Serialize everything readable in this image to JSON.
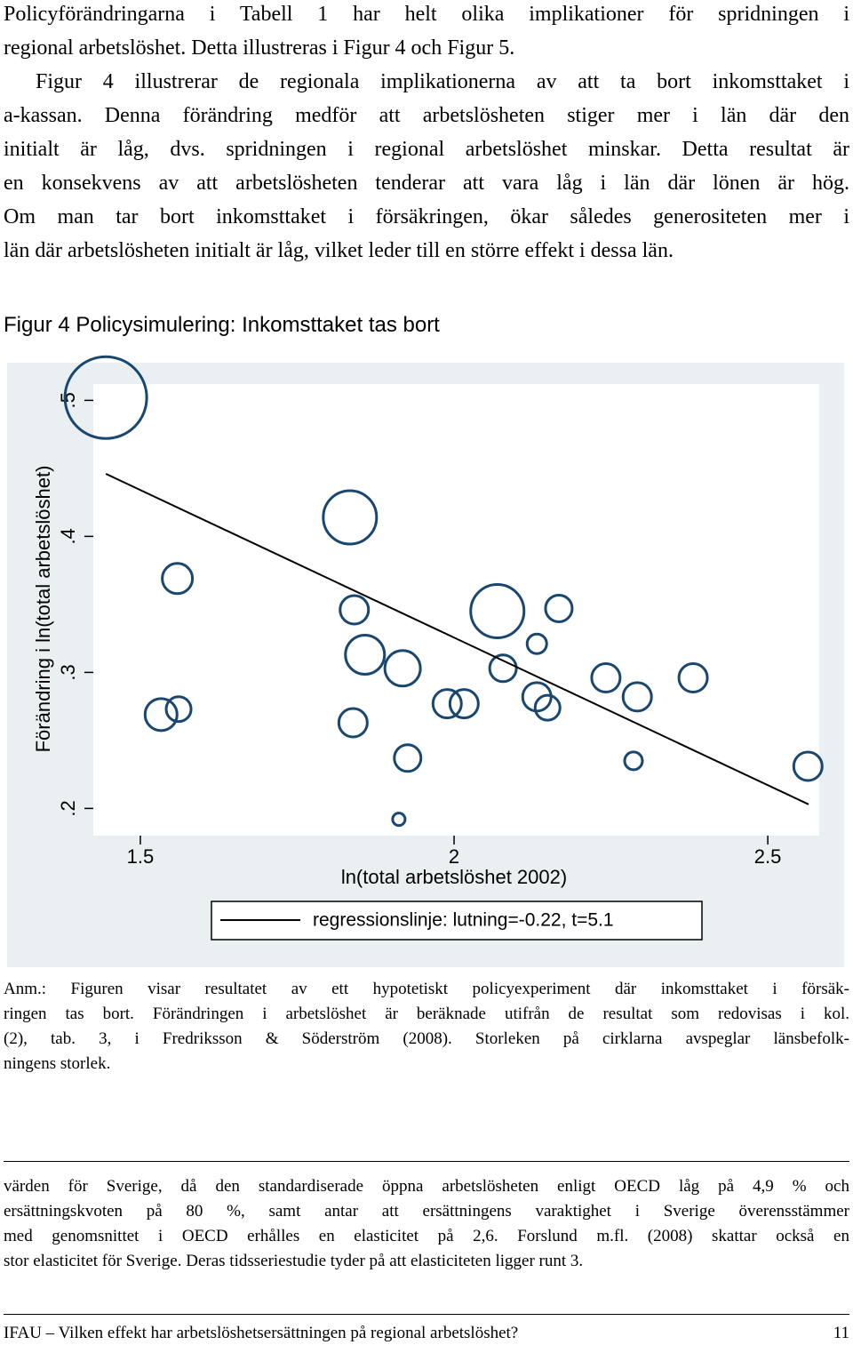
{
  "body": {
    "lines": [
      "Policyförändringarna i Tabell 1 har helt olika implikationer för spridningen i",
      "regional arbetslöshet. Detta illustreras i Figur 4 och Figur 5.",
      "Figur 4 illustrerar de regionala implikationerna av att ta bort inkomsttaket i",
      "a-kassan. Denna förändring medför att arbetslösheten stiger mer i län där den",
      "initialt är låg, dvs. spridningen i regional arbetslöshet minskar. Detta resultat är",
      "en konsekvens av att arbetslösheten tenderar att vara låg i län där lönen är hög.",
      "Om man tar bort inkomsttaket i försäkringen, ökar således generositeten mer i",
      "län där arbetslösheten initialt är låg, vilket leder till en större effekt i dessa län."
    ]
  },
  "figure": {
    "title": "Figur 4 Policysimulering: Inkomsttaket tas bort"
  },
  "chart_data": {
    "type": "scatter",
    "x_label": "ln(total arbetslöshet 2002)",
    "y_label": "Förändring i ln(total arbetslöshet)",
    "x": [
      1.445,
      1.559,
      1.533,
      1.561,
      1.834,
      1.841,
      1.858,
      1.839,
      1.918,
      1.926,
      1.912,
      1.989,
      2.016,
      2.069,
      2.078,
      2.132,
      2.167,
      2.132,
      2.149,
      2.242,
      2.292,
      2.286,
      2.381,
      2.564
    ],
    "values": [
      0.502,
      0.369,
      0.269,
      0.273,
      0.414,
      0.346,
      0.313,
      0.263,
      0.303,
      0.237,
      0.192,
      0.277,
      0.277,
      0.345,
      0.303,
      0.321,
      0.347,
      0.282,
      0.274,
      0.296,
      0.282,
      0.235,
      0.296,
      0.231
    ],
    "sizes": [
      46,
      17,
      18,
      14,
      30,
      16,
      22,
      16,
      20,
      15,
      7,
      16,
      16,
      30,
      15,
      11,
      15,
      16,
      14,
      16,
      16,
      10,
      16,
      16
    ],
    "color": "#1a476f",
    "regression": {
      "name": "regressionslinje: lutning=-0.22, t=5.1",
      "x": [
        1.445,
        2.565
      ],
      "values": [
        0.446,
        0.203
      ],
      "color": "#000000"
    },
    "xlim": [
      1.425,
      2.582
    ],
    "ylim": [
      0.18,
      0.512
    ],
    "xticks": [
      1.5,
      2,
      2.5
    ],
    "yticks": [
      {
        "value": 0.2,
        "label": ".2"
      },
      {
        "value": 0.3,
        "label": ".3"
      },
      {
        "value": 0.4,
        "label": ".4"
      },
      {
        "value": 0.5,
        "label": ".5"
      }
    ]
  },
  "note": {
    "lines": [
      "Anm.: Figuren visar resultatet av ett hypotetiskt policyexperiment där inkomsttaket i försäk-",
      "ringen tas bort. Förändringen i arbetslöshet är beräknade utifrån de resultat som redovisas i kol.",
      "(2), tab. 3, i Fredriksson & Söderström (2008). Storleken på cirklarna avspeglar länsbefolk-",
      "ningens storlek."
    ]
  },
  "footnote": {
    "lines": [
      "värden för Sverige, då den standardiserade öppna arbetslösheten enligt OECD låg på 4,9 % och",
      "ersättningskvoten på 80 %, samt antar att ersättningens varaktighet i Sverige överensstämmer",
      "med genomsnittet i OECD erhålles en elasticitet på 2,6. Forslund m.fl. (2008) skattar också en",
      "stor elasticitet för Sverige. Deras tidsseriestudie tyder på att elasticiteten ligger runt 3."
    ]
  },
  "footer": {
    "text": "IFAU – Vilken effekt har arbetslöshetsersättningen på regional arbetslöshet?",
    "page": "11"
  }
}
